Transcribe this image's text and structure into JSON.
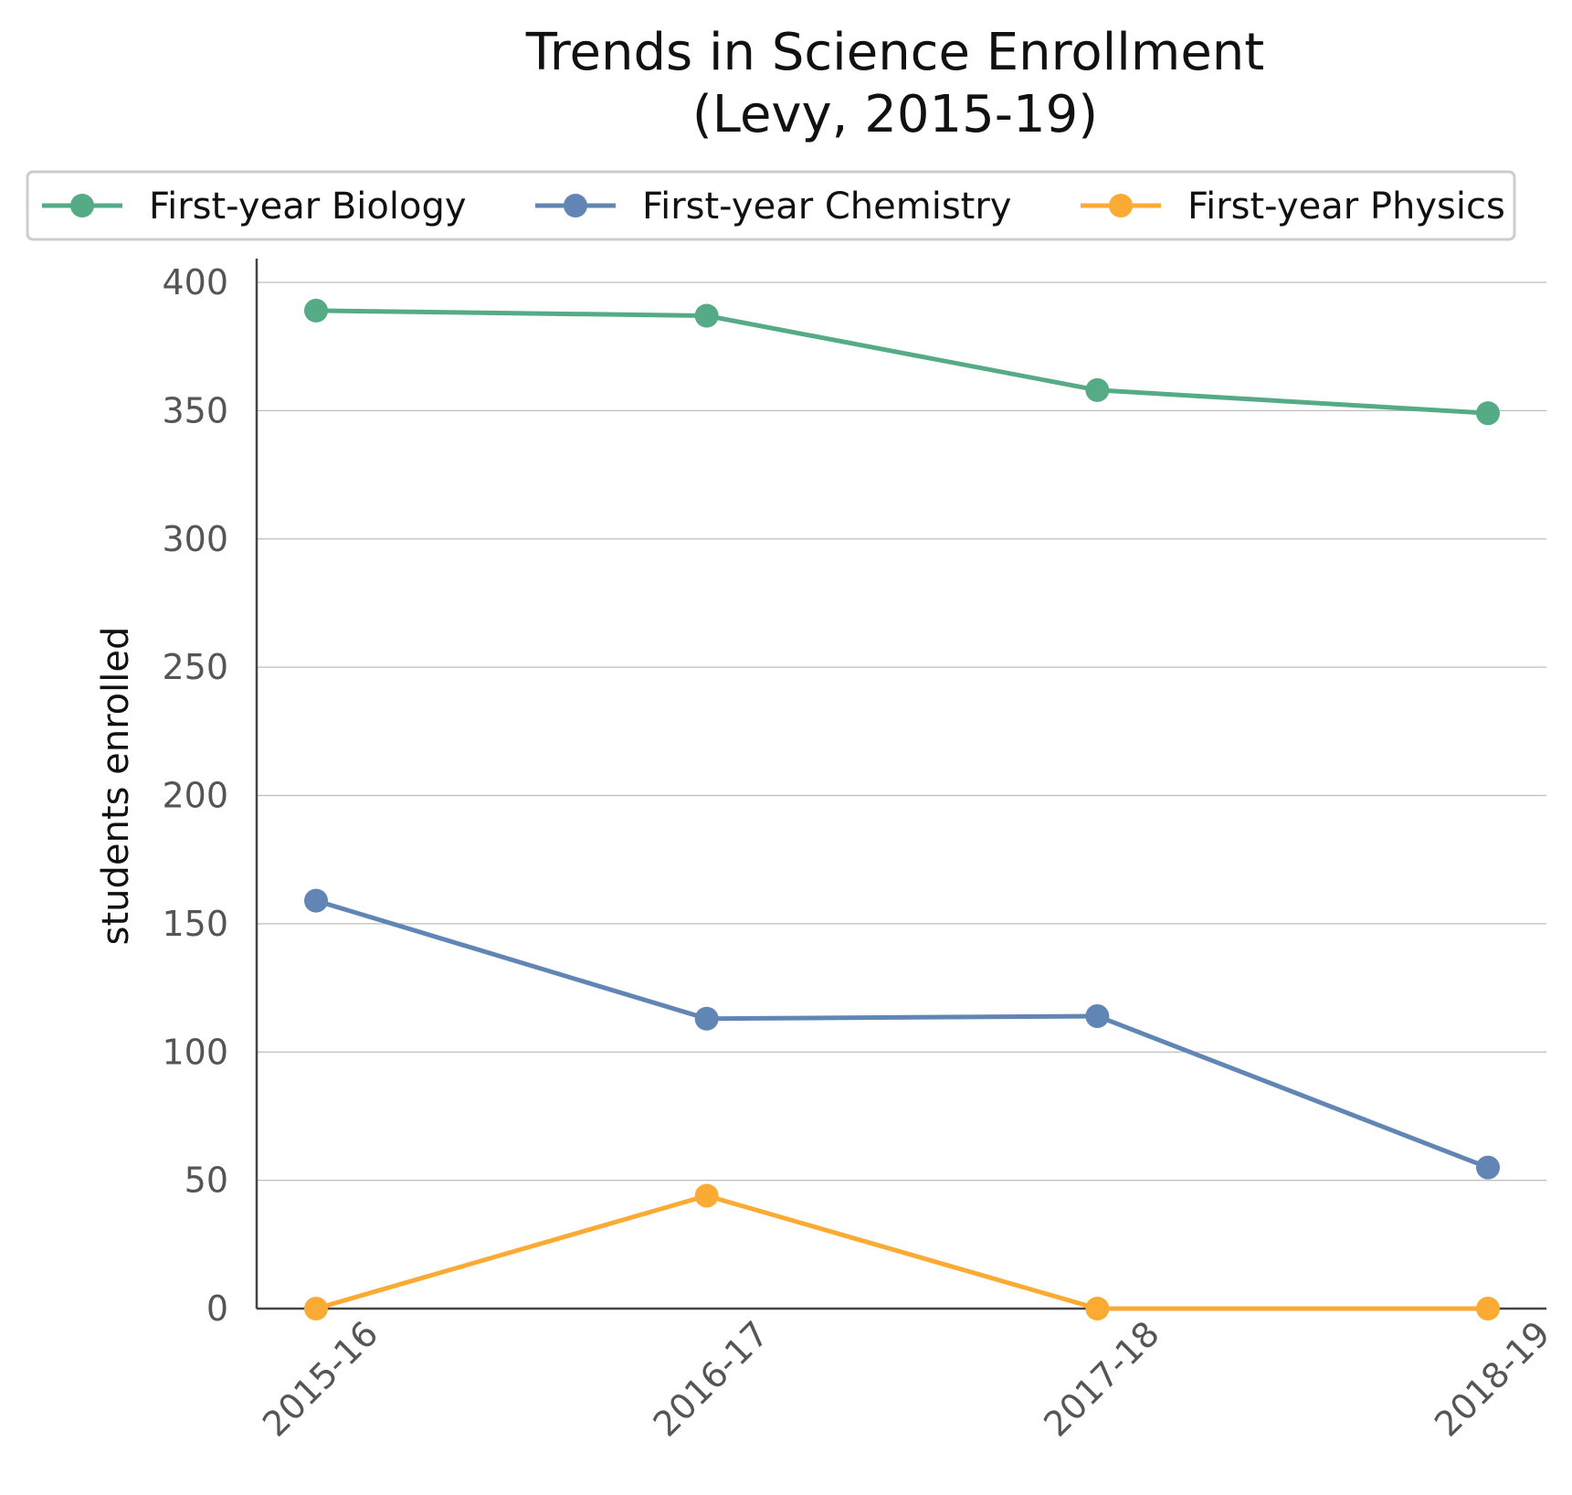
{
  "chart_data": {
    "type": "line",
    "title": [
      "Trends in Science Enrollment",
      "(Levy, 2015-19)"
    ],
    "xlabel": "",
    "ylabel": "students enrolled",
    "categories": [
      "2015-16",
      "2016-17",
      "2017-18",
      "2018-19"
    ],
    "ylim": [
      0,
      410
    ],
    "yticks": [
      0,
      50,
      100,
      150,
      200,
      250,
      300,
      350,
      400
    ],
    "grid": true,
    "legend_position": "top",
    "series": [
      {
        "name": "First-year Biology",
        "color": "#55ab85",
        "values": [
          389,
          387,
          358,
          349
        ]
      },
      {
        "name": "First-year Chemistry",
        "color": "#6186b5",
        "values": [
          159,
          113,
          114,
          55
        ]
      },
      {
        "name": "First-year Physics",
        "color": "#fbab34",
        "values": [
          0,
          44,
          0,
          0
        ]
      }
    ]
  }
}
